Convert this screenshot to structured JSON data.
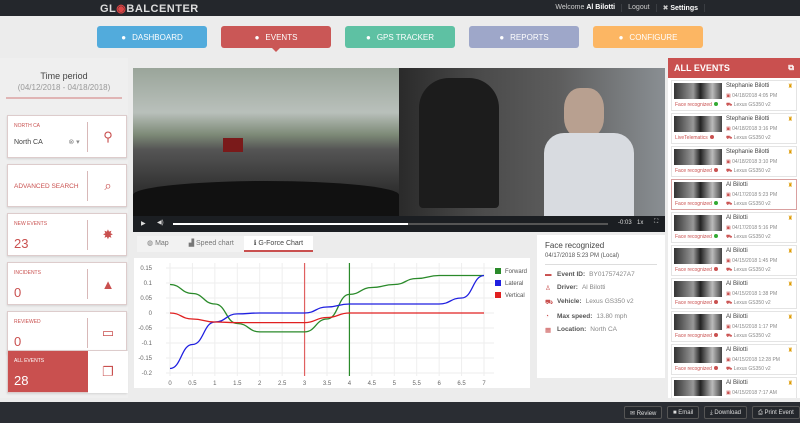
{
  "header": {
    "logo": "GLOBALCENTER",
    "welcome": "Welcome",
    "user": "Al Bilotti",
    "logout": "Logout",
    "settings": "Settings"
  },
  "nav": [
    {
      "label": "DASHBOARD",
      "color": "#4aa8dc",
      "icon": "dashboard-icon"
    },
    {
      "label": "EVENTS",
      "color": "#c9504f",
      "icon": "warning-icon",
      "active": true
    },
    {
      "label": "GPS TRACKER",
      "color": "#57bfa0",
      "icon": "map-pin-icon"
    },
    {
      "label": "REPORTS",
      "color": "#9aa4c8",
      "icon": "pie-chart-icon"
    },
    {
      "label": "CONFIGURE",
      "color": "#fdb45c",
      "icon": "sitemap-icon"
    }
  ],
  "sidebar": {
    "title": "Time period",
    "range": "(04/12/2018 - 04/18/2018)",
    "region": {
      "label": "NORTH CA",
      "value": "North CA"
    },
    "advanced_search": "ADVANCED SEARCH",
    "new_events": {
      "label": "NEW EVENTS",
      "count": "23"
    },
    "incidents": {
      "label": "INCIDENTS",
      "count": "0"
    },
    "reviewed": {
      "label": "REVIEWED",
      "count": "0"
    },
    "all_events": {
      "label": "ALL EVENTS",
      "count": "28"
    }
  },
  "video": {
    "time": "-0:03",
    "speed": "1x",
    "progress": 0.54
  },
  "tabs": [
    "Map",
    "Speed chart",
    "G-Force Chart"
  ],
  "chart_data": {
    "type": "line",
    "x": [
      0,
      0.5,
      1,
      1.5,
      2,
      2.5,
      3,
      3.5,
      4,
      4.5,
      5,
      5.5,
      6,
      6.5,
      7
    ],
    "xlim": [
      0,
      7
    ],
    "ylim": [
      -0.2,
      0.15
    ],
    "xticks": [
      "0",
      "0.5",
      "1",
      "1.5",
      "2",
      "2.5",
      "3",
      "3.5",
      "4",
      "4.5",
      "5",
      "5.5",
      "6",
      "6.5",
      "7"
    ],
    "yticks": [
      "0.15",
      "0.1",
      "0.05",
      "0",
      "-0.05",
      "-0.1",
      "-0.15",
      "-0.2"
    ],
    "grid": true,
    "legend": "right",
    "markers": [
      {
        "x": 3,
        "color": "#e06060"
      },
      {
        "x": 4,
        "color": "#2a8a2a"
      }
    ],
    "series": [
      {
        "name": "Forward",
        "color": "#2a8a2a",
        "values": [
          0.095,
          0.065,
          0.03,
          -0.035,
          -0.063,
          -0.063,
          -0.063,
          -0.02,
          0.062,
          0.085,
          0.095,
          0.115,
          0.125,
          0.125,
          0.125
        ]
      },
      {
        "name": "Lateral",
        "color": "#1f1fe0",
        "values": [
          -0.185,
          -0.105,
          -0.03,
          -0.003,
          0,
          0,
          0,
          0.02,
          0.03,
          0.03,
          0.03,
          0.03,
          0.03,
          0.05,
          0.125
        ]
      },
      {
        "name": "Vertical",
        "color": "#e02020",
        "values": [
          0,
          -0.02,
          -0.03,
          -0.032,
          -0.032,
          -0.032,
          -0.032,
          -0.015,
          0,
          0,
          0,
          0,
          0,
          0,
          0
        ]
      }
    ]
  },
  "info": {
    "title": "Face recognized",
    "datetime": "04/17/2018 5:23 PM (Local)",
    "rows": [
      {
        "k": "Event ID:",
        "v": "BY01757427A7"
      },
      {
        "k": "Driver:",
        "v": "Al Bilotti"
      },
      {
        "k": "Vehicle:",
        "v": "Lexus GS350 v2"
      },
      {
        "k": "Max speed:",
        "v": "13.80 mph"
      },
      {
        "k": "Location:",
        "v": "North CA"
      }
    ]
  },
  "events_panel": {
    "title": "ALL EVENTS",
    "items": [
      {
        "name": "Stephanie Bilotti",
        "date": "04/18/2018 4:05 PM",
        "vehicle": "Lexus GS350 v2",
        "type": "Face recognized",
        "dot": "#3a3"
      },
      {
        "name": "Stephanie Bilotti",
        "date": "04/18/2018 3:16 PM",
        "vehicle": "Lexus GS350 v2",
        "type": "LiveTelematics",
        "dot": "#c9504f"
      },
      {
        "name": "Stephanie Bilotti",
        "date": "04/18/2018 3:10 PM",
        "vehicle": "Lexus GS350 v2",
        "type": "Face recognized",
        "dot": "#c9504f"
      },
      {
        "name": "Al Bilotti",
        "date": "04/17/2018 5:23 PM",
        "vehicle": "Lexus GS350 v2",
        "type": "Face recognized",
        "dot": "#3a3",
        "selected": true
      },
      {
        "name": "Al Bilotti",
        "date": "04/17/2018 5:16 PM",
        "vehicle": "Lexus GS350 v2",
        "type": "Face recognized",
        "dot": "#3a3"
      },
      {
        "name": "Al Bilotti",
        "date": "04/15/2018 1:45 PM",
        "vehicle": "Lexus GS350 v2",
        "type": "Face recognized",
        "dot": "#c9504f"
      },
      {
        "name": "Al Bilotti",
        "date": "04/15/2018 1:38 PM",
        "vehicle": "Lexus GS350 v2",
        "type": "Face recognized",
        "dot": "#c9504f"
      },
      {
        "name": "Al Bilotti",
        "date": "04/15/2018 1:17 PM",
        "vehicle": "Lexus GS350 v2",
        "type": "Face recognized",
        "dot": "#c9504f"
      },
      {
        "name": "Al Bilotti",
        "date": "04/15/2018 12:28 PM",
        "vehicle": "Lexus GS350 v2",
        "type": "Face recognized",
        "dot": "#c9504f"
      },
      {
        "name": "Al Bilotti",
        "date": "04/15/2018 7:17 AM",
        "vehicle": "Lexus GS350 v2",
        "type": "Face recognized",
        "dot": "#c9504f"
      },
      {
        "name": "Al Bilotti",
        "date": "",
        "vehicle": "",
        "type": "",
        "dot": "#c9504f"
      }
    ]
  },
  "footer": {
    "review": "Review",
    "email": "Email",
    "download": "Download",
    "print": "Print Event"
  }
}
